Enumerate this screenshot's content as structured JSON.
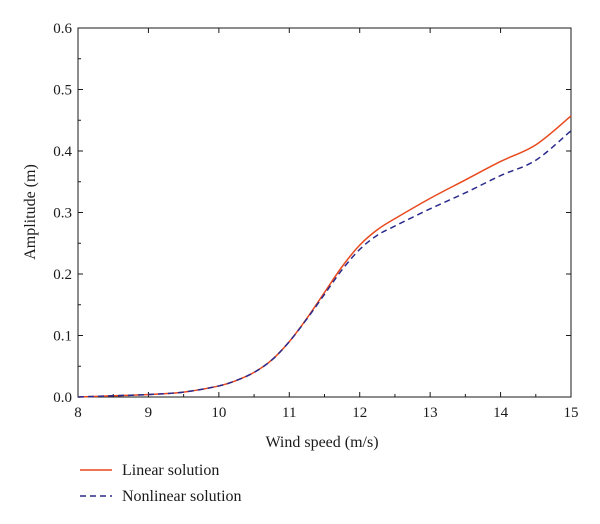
{
  "chart_data": {
    "type": "line",
    "title": "",
    "xlabel": "Wind speed (m/s)",
    "ylabel": "Amplitude (m)",
    "xlim": [
      8,
      15
    ],
    "ylim": [
      0,
      0.6
    ],
    "xticks": [
      8,
      9,
      10,
      11,
      12,
      13,
      14,
      15
    ],
    "yticks": [
      0.0,
      0.1,
      0.2,
      0.3,
      0.4,
      0.5,
      0.6
    ],
    "ytick_labels": [
      "0.0",
      "0.1",
      "0.2",
      "0.3",
      "0.4",
      "0.5",
      "0.6"
    ],
    "grid": false,
    "legend_position": "bottom",
    "series": [
      {
        "name": "Linear solution",
        "color": "#e8491d",
        "style": "solid",
        "x": [
          8.0,
          8.5,
          9.0,
          9.5,
          10.0,
          10.25,
          10.5,
          10.75,
          11.0,
          11.25,
          11.5,
          11.75,
          12.0,
          12.25,
          12.5,
          13.0,
          13.5,
          14.0,
          14.5,
          15.0
        ],
        "y": [
          0.0,
          0.002,
          0.004,
          0.008,
          0.018,
          0.027,
          0.04,
          0.06,
          0.09,
          0.128,
          0.17,
          0.212,
          0.247,
          0.272,
          0.29,
          0.323,
          0.353,
          0.383,
          0.41,
          0.457
        ]
      },
      {
        "name": "Nonlinear solution",
        "color": "#2a2a8c",
        "style": "dashed",
        "x": [
          8.0,
          8.5,
          9.0,
          9.5,
          10.0,
          10.25,
          10.5,
          10.75,
          11.0,
          11.25,
          11.5,
          11.75,
          12.0,
          12.25,
          12.5,
          13.0,
          13.5,
          14.0,
          14.5,
          15.0
        ],
        "y": [
          0.0,
          0.002,
          0.004,
          0.008,
          0.018,
          0.027,
          0.04,
          0.06,
          0.09,
          0.127,
          0.167,
          0.207,
          0.24,
          0.263,
          0.278,
          0.306,
          0.332,
          0.36,
          0.385,
          0.433
        ]
      }
    ]
  }
}
